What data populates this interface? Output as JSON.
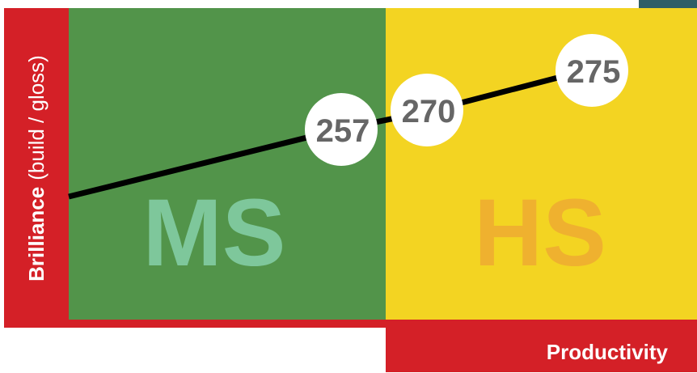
{
  "y_axis": {
    "label": "Brilliance",
    "qualifier": "(build / gloss)"
  },
  "x_axis": {
    "label": "Productivity"
  },
  "zones": [
    {
      "label": "MS"
    },
    {
      "label": "HS"
    }
  ],
  "points": [
    {
      "label": 257
    },
    {
      "label": 270
    },
    {
      "label": 275
    }
  ]
}
